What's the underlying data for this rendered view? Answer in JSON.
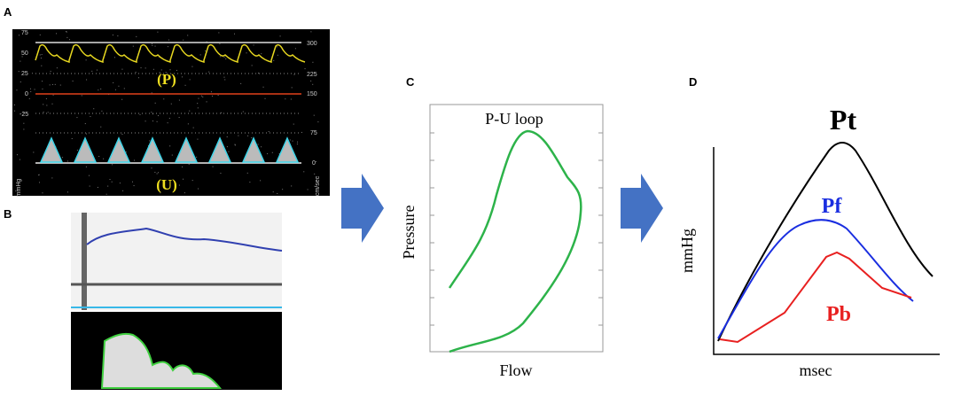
{
  "panels": {
    "a": {
      "label": "A",
      "left_ticks": [
        "75",
        "50",
        "25",
        "0",
        "-25"
      ],
      "right_ticks": [
        "300",
        "225",
        "150",
        "75",
        "0"
      ],
      "left_unit": "mmHg",
      "right_unit": "cm/sec",
      "pressure_label": "(P)",
      "velocity_label": "(U)"
    },
    "b": {
      "label": "B"
    },
    "c": {
      "label": "C",
      "title": "P-U loop",
      "y_label": "Pressure",
      "x_label": "Flow"
    },
    "d": {
      "label": "D",
      "y_label": "mmHg",
      "x_label": "msec",
      "curves": [
        "Pt",
        "Pf",
        "Pb"
      ]
    }
  }
}
